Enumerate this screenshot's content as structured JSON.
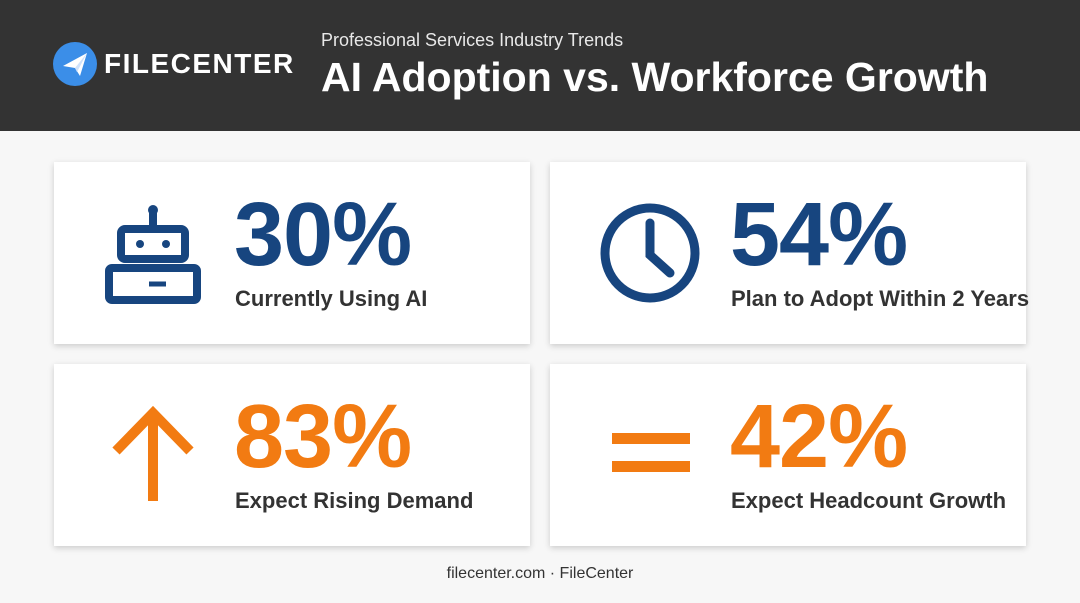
{
  "header": {
    "brand": "FILECENTER",
    "subtitle": "Professional Services Industry Trends",
    "title": "AI Adoption vs. Workforce Growth"
  },
  "cards": [
    {
      "value": "30%",
      "label": "Currently Using AI"
    },
    {
      "value": "54%",
      "label": "Plan to Adopt Within 2 Years"
    },
    {
      "value": "83%",
      "label": "Expect Rising Demand"
    },
    {
      "value": "42%",
      "label": "Expect Headcount Growth"
    }
  ],
  "footer": "filecenter.com · FileCenter"
}
